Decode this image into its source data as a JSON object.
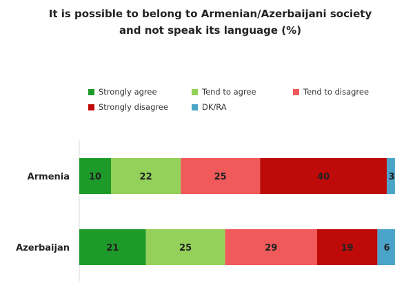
{
  "chart_data": {
    "type": "bar",
    "orientation": "horizontal",
    "stacked": true,
    "title_lines": [
      "It is possible to belong to Armenian/Azerbaijani society",
      "and not speak its language (%)"
    ],
    "categories": [
      "Armenia",
      "Azerbaijan"
    ],
    "series": [
      {
        "name": "Strongly agree",
        "color": "#1e9a2a",
        "values": [
          10,
          21
        ],
        "labels": [
          "10",
          "21"
        ]
      },
      {
        "name": "Tend to agree",
        "color": "#93d15a",
        "values": [
          22,
          25
        ],
        "labels": [
          "22",
          "25"
        ]
      },
      {
        "name": "Tend to disagree",
        "color": "#f05a5a",
        "values": [
          25,
          29
        ],
        "labels": [
          "25",
          "29"
        ]
      },
      {
        "name": "Strongly disagree",
        "color": "#bf0a0a",
        "values": [
          40,
          19
        ],
        "labels": [
          "40",
          "19"
        ]
      },
      {
        "name": "DK/RA",
        "color": "#4aa3c8",
        "values": [
          3,
          6
        ],
        "labels": [
          "3",
          "6"
        ]
      }
    ],
    "legend_position": "top",
    "grid": false
  }
}
